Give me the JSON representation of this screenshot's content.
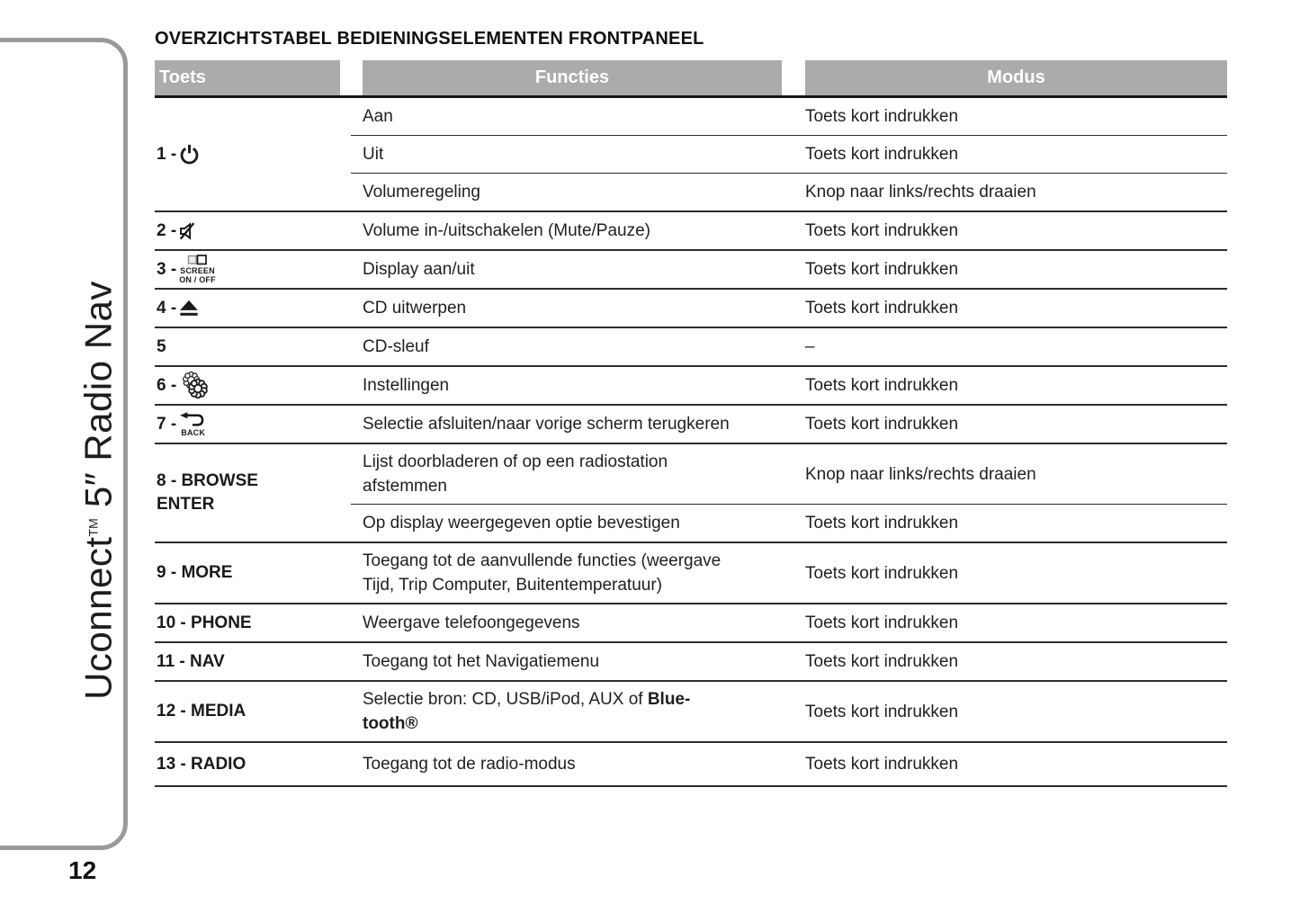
{
  "page": {
    "number": "12",
    "heading": "OVERZICHTSTABEL BEDIENINGSELEMENTEN FRONTPANEEL"
  },
  "sidebar": {
    "title": "Uconnect",
    "tm": "TM",
    "rest": "5″ Radio Nav"
  },
  "colors": {
    "header_bg": "#ababab",
    "header_text": "#ffffff",
    "body_text": "#1f1f1f",
    "rule": "#2d2d2d",
    "sidebar_border": "#9a9a9a"
  },
  "table": {
    "headers": [
      "Toets",
      "Functies",
      "Modus"
    ],
    "rows": [
      {
        "key": "1 -",
        "icon": "power-icon",
        "subrows": [
          {
            "functie": "Aan",
            "modus": "Toets kort indrukken"
          },
          {
            "functie": "Uit",
            "modus": "Toets kort indrukken"
          },
          {
            "functie": "Volumeregeling",
            "modus": "Knop naar links/rechts draaien"
          }
        ]
      },
      {
        "key": "2 -",
        "icon": "mute-icon",
        "subrows": [
          {
            "functie": "Volume in-/uitschakelen (Mute/Pauze)",
            "modus": "Toets kort indrukken"
          }
        ]
      },
      {
        "key": "3 -",
        "icon": "screen-on-off-icon",
        "icon_text_lines": [
          "SCREEN",
          "ON / OFF"
        ],
        "subrows": [
          {
            "functie": "Display aan/uit",
            "modus": "Toets kort indrukken"
          }
        ]
      },
      {
        "key": "4 -",
        "icon": "eject-icon",
        "subrows": [
          {
            "functie": "CD uitwerpen",
            "modus": "Toets kort indrukken"
          }
        ]
      },
      {
        "key": "5",
        "subrows": [
          {
            "functie": "CD-sleuf",
            "modus": "–"
          }
        ]
      },
      {
        "key": "6 -",
        "icon": "settings-icon",
        "subrows": [
          {
            "functie": "Instellingen",
            "modus": "Toets kort indrukken"
          }
        ]
      },
      {
        "key": "7 -",
        "icon": "back-icon",
        "icon_label": "BACK",
        "subrows": [
          {
            "functie": "Selectie afsluiten/naar vorige scherm terugkeren",
            "modus": "Toets kort indrukken"
          }
        ]
      },
      {
        "key": "8 - BROWSE",
        "key_line2": "ENTER",
        "subrows": [
          {
            "functie_segments": [
              {
                "t": "Lijst doorbladeren of op een radiostation"
              },
              {
                "br": true
              },
              {
                "t": "afstemmen"
              }
            ],
            "modus": "Knop naar links/rechts draaien"
          },
          {
            "functie": "Op display weergegeven optie bevestigen",
            "modus": "Toets kort indrukken"
          }
        ]
      },
      {
        "key": "9 - MORE",
        "subrows": [
          {
            "functie_segments": [
              {
                "t": "Toegang tot de aanvullende functies (weergave"
              },
              {
                "br": true
              },
              {
                "t": "Tijd, Trip Computer, Buitentemperatuur)"
              }
            ],
            "modus": "Toets kort indrukken"
          }
        ]
      },
      {
        "key": "10 - PHONE",
        "subrows": [
          {
            "functie": "Weergave telefoongegevens",
            "modus": "Toets kort indrukken"
          }
        ]
      },
      {
        "key": "11 - NAV",
        "subrows": [
          {
            "functie": "Toegang tot het Navigatiemenu",
            "modus": "Toets kort indrukken"
          }
        ]
      },
      {
        "key": "12 - MEDIA",
        "subrows": [
          {
            "functie_segments": [
              {
                "t": "Selectie bron: CD, USB/iPod, AUX of "
              },
              {
                "t": "Blue-",
                "b": true
              },
              {
                "br": true
              },
              {
                "t": "tooth®",
                "b": true
              }
            ],
            "modus": "Toets kort indrukken"
          }
        ]
      },
      {
        "key": "13 - RADIO",
        "subrows": [
          {
            "functie": "Toegang tot de radio-modus",
            "modus": "Toets kort indrukken"
          }
        ]
      }
    ]
  }
}
